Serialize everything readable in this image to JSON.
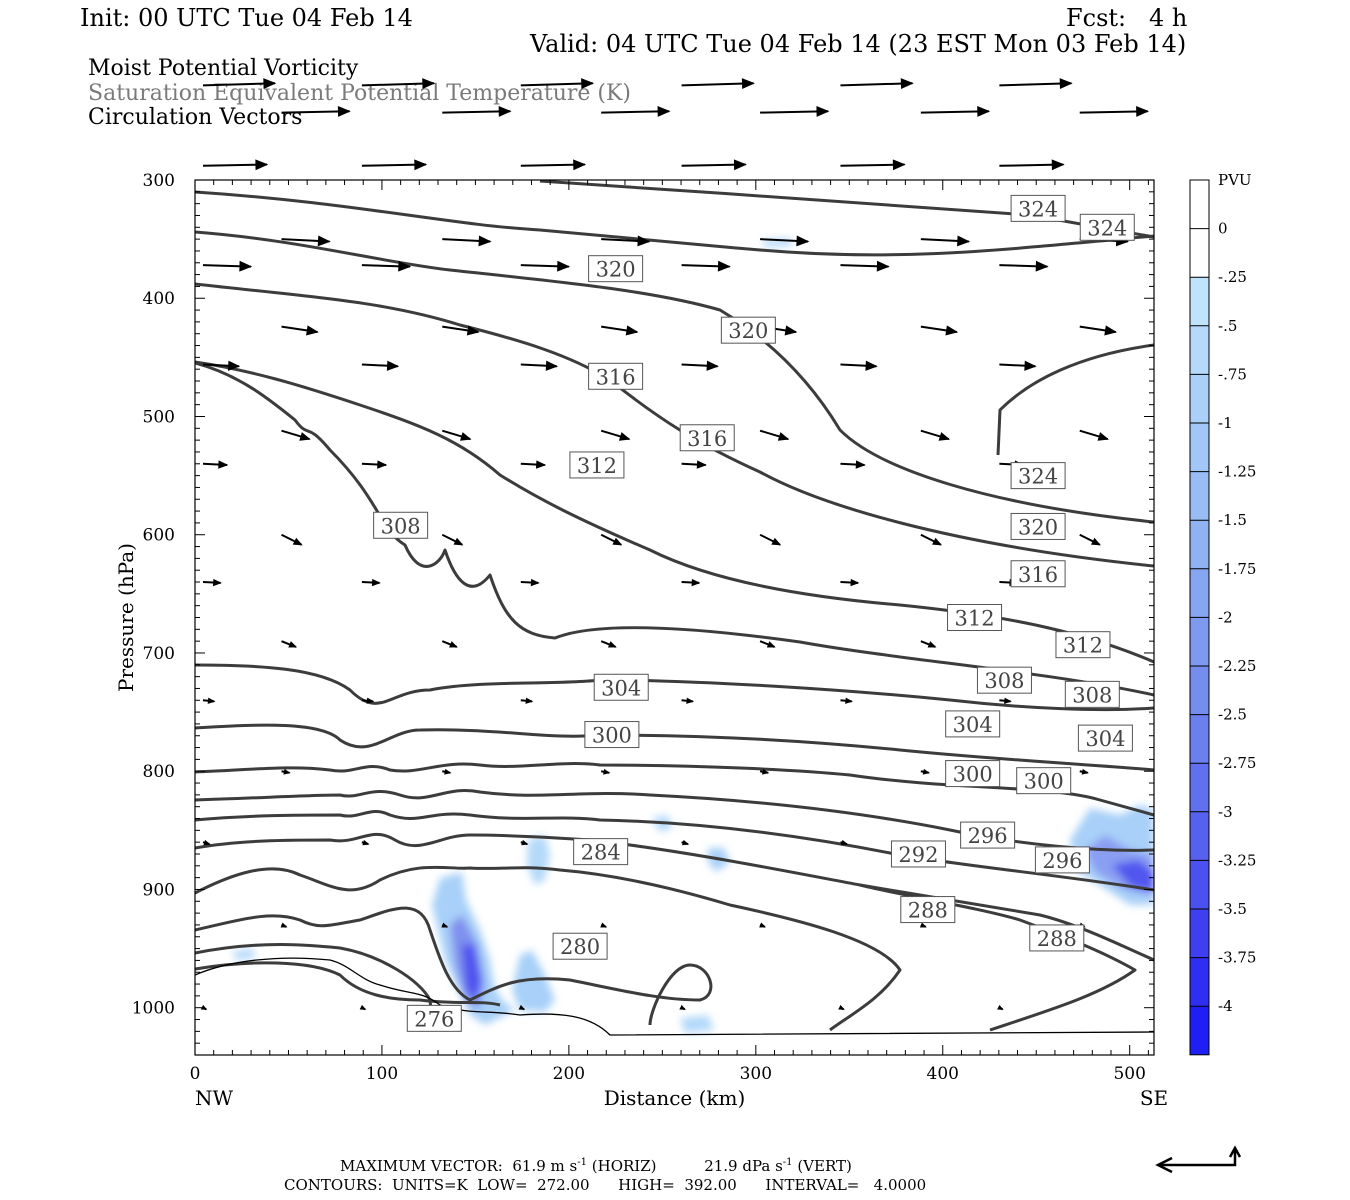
{
  "header": {
    "init": "Init: 00 UTC Tue 04 Feb 14",
    "fcst": "Fcst:   4 h",
    "valid": "Valid: 04 UTC Tue 04 Feb 14 (23 EST Mon 03 Feb 14)"
  },
  "fields": [
    "Moist Potential Vorticity",
    "Saturation Equivalent Potential Temperature (K)",
    "Circulation Vectors"
  ],
  "footer": {
    "max_vector_prefix": "MAXIMUM VECTOR:  61.9 m s",
    "horiz": "(HORIZ)",
    "vert_value": "21.9 dPa s",
    "vert": "(VERT)",
    "exp": "-1",
    "contours": "CONTOURS:  UNITS=K  LOW=  272.00      HIGH=  392.00      INTERVAL=   4.0000"
  },
  "chart_data": {
    "type": "cross-section",
    "title": "Moist Potential Vorticity / Saturation Equivalent Potential Temperature / Circulation Vectors",
    "xlabel": "Distance (km)",
    "ylabel": "Pressure (hPa)",
    "xlim": [
      0,
      513
    ],
    "ylim": [
      1040,
      300
    ],
    "x_ticks": [
      0,
      100,
      200,
      300,
      400,
      500
    ],
    "y_ticks": [
      300,
      400,
      500,
      600,
      700,
      800,
      900,
      1000
    ],
    "x_end_labels": {
      "left": "NW",
      "right": "SE"
    },
    "colorbar": {
      "unit": "PVU",
      "levels": [
        "0",
        "-.25",
        "-.5",
        "-.75",
        "-1",
        "-1.25",
        "-1.5",
        "-1.75",
        "-2",
        "-2.25",
        "-2.5",
        "-2.75",
        "-3",
        "-3.25",
        "-3.5",
        "-3.75",
        "-4"
      ],
      "colors": [
        "#ffffff",
        "#ffffff",
        "#bfe3fb",
        "#b4d9fa",
        "#aad0f9",
        "#a1c6f7",
        "#98bdf5",
        "#8fb2f3",
        "#87a6f1",
        "#7e9af0",
        "#758dee",
        "#6b7fee",
        "#6170ee",
        "#5661ef",
        "#4b50f0",
        "#3f3ff1",
        "#2f2ef2",
        "#1f1ff5"
      ]
    },
    "contour_labels": [
      {
        "text": "324",
        "x": 451,
        "p": 324
      },
      {
        "text": "324",
        "x": 488,
        "p": 340
      },
      {
        "text": "320",
        "x": 225,
        "p": 375
      },
      {
        "text": "320",
        "x": 296,
        "p": 427
      },
      {
        "text": "316",
        "x": 225,
        "p": 466
      },
      {
        "text": "316",
        "x": 274,
        "p": 518
      },
      {
        "text": "312",
        "x": 215,
        "p": 541
      },
      {
        "text": "308",
        "x": 110,
        "p": 592
      },
      {
        "text": "324",
        "x": 451,
        "p": 550
      },
      {
        "text": "320",
        "x": 451,
        "p": 593
      },
      {
        "text": "316",
        "x": 451,
        "p": 633
      },
      {
        "text": "312",
        "x": 417,
        "p": 670
      },
      {
        "text": "312",
        "x": 475,
        "p": 693
      },
      {
        "text": "308",
        "x": 433,
        "p": 723
      },
      {
        "text": "308",
        "x": 480,
        "p": 735
      },
      {
        "text": "304",
        "x": 228,
        "p": 729
      },
      {
        "text": "304",
        "x": 416,
        "p": 760
      },
      {
        "text": "304",
        "x": 487,
        "p": 772
      },
      {
        "text": "300",
        "x": 223,
        "p": 769
      },
      {
        "text": "300",
        "x": 416,
        "p": 802
      },
      {
        "text": "300",
        "x": 454,
        "p": 808
      },
      {
        "text": "296",
        "x": 424,
        "p": 854
      },
      {
        "text": "296",
        "x": 464,
        "p": 875
      },
      {
        "text": "292",
        "x": 387,
        "p": 870
      },
      {
        "text": "288",
        "x": 392,
        "p": 917
      },
      {
        "text": "288",
        "x": 461,
        "p": 941
      },
      {
        "text": "284",
        "x": 217,
        "p": 868
      },
      {
        "text": "280",
        "x": 206,
        "p": 948
      },
      {
        "text": "276",
        "x": 128,
        "p": 1009
      }
    ],
    "max_vector_horiz_ms": 61.9,
    "max_vector_vert_dpas": 21.9,
    "contour_low": 272.0,
    "contour_high": 392.0,
    "contour_interval": 4.0
  }
}
